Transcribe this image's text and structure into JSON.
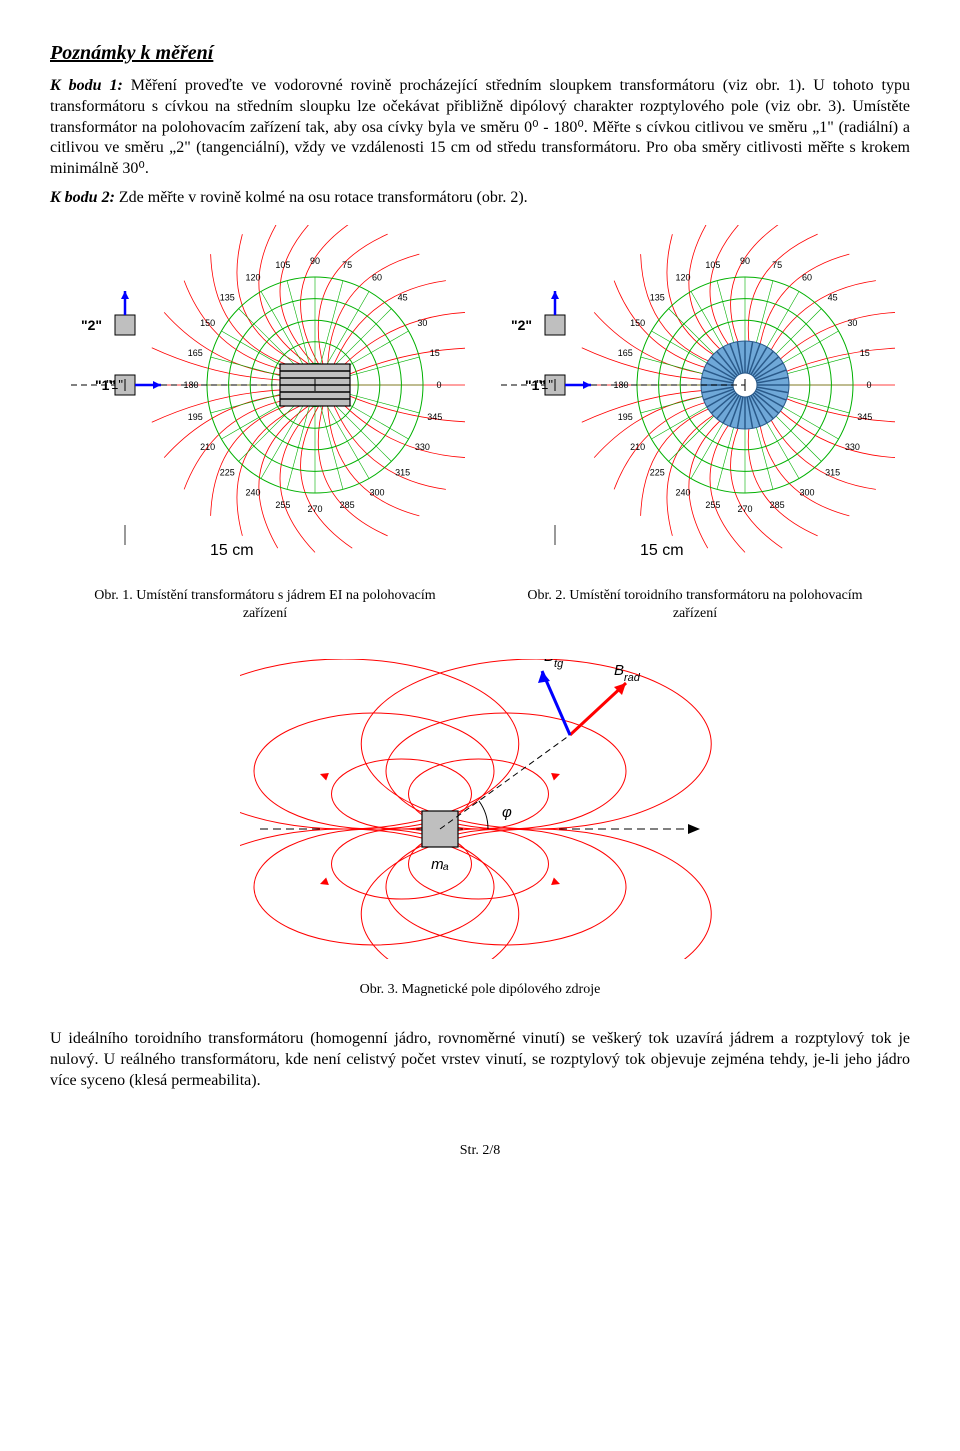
{
  "section_title": "Poznámky k měření",
  "para1_lead": "K bodu 1:",
  "para1_text": " Měření proveďte ve vodorovné rovině procházející středním sloupkem transformátoru (viz obr. 1). U tohoto typu transformátoru s cívkou na středním sloupku lze očekávat přibližně dipólový charakter rozptylového pole (viz obr. 3). Umístěte transformátor na polohovacím zařízení tak, aby osa cívky byla ve směru 0⁰ - 180⁰. Měřte s cívkou citlivou ve směru „1\" (radiální) a citlivou ve směru „2\" (tangenciální), vždy ve vzdálenosti 15 cm od středu transformátoru. Pro oba směry citlivosti měřte s krokem minimálně 30⁰.",
  "para2_lead": "K bodu 2:",
  "para2_text": " Zde měřte v rovině kolmé na osu rotace transformátoru (obr. 2).",
  "polar": {
    "angles": [
      0,
      15,
      30,
      45,
      60,
      75,
      90,
      105,
      120,
      135,
      150,
      165,
      180,
      195,
      210,
      225,
      240,
      255,
      270,
      285,
      300,
      315,
      330,
      345
    ],
    "angle_label_fontsize": 9,
    "angle_label_color": "#000000",
    "rings": 5,
    "ring_color": "#00b000",
    "spoke_color": "#808080",
    "field_line_color": "#ff0000",
    "field_line_count": 28,
    "center_rect_fill": "#bfbfbf",
    "center_rect_stroke": "#000000",
    "toroid_fill": "#6fa8d8",
    "toroid_stroke": "#2a5a8a",
    "spoke_count_toroid": 36,
    "probe_box_fill": "#bfbfbf",
    "probe_box_stroke": "#000000",
    "arrow_color": "#0000ff",
    "label_1": "\"1\"",
    "label_2": "\"2\"",
    "distance_label": "15 cm",
    "distance_label_fontsize": 16,
    "distance_label_color": "#000000"
  },
  "caption1": "Obr. 1.  Umístění transformátoru s jádrem EI na polohovacím zařízení",
  "caption2": "Obr. 2. Umístění toroidního transformátoru na polohovacím zařízení",
  "fig3": {
    "field_line_color": "#ff0000",
    "axis_color": "#000000",
    "box_fill": "#bfbfbf",
    "box_stroke": "#000000",
    "vec_rad_color": "#ff0000",
    "vec_tg_color": "#0000ff",
    "angle_arc_color": "#000000",
    "label_mA": "mₐ",
    "label_Btg": "B_tg",
    "label_Brad": "B_rad",
    "label_phi": "φ",
    "label_fontsize_main": 15,
    "label_fontsize_sub": 11
  },
  "caption3": "Obr. 3.  Magnetické pole dipólového zdroje",
  "para3_text": "U ideálního toroidního transformátoru (homogenní jádro, rovnoměrné vinutí) se veškerý tok uzavírá jádrem a rozptylový tok je nulový. U reálného transformátoru, kde není celistvý počet vrstev vinutí, se rozptylový tok objevuje zejména tehdy, je-li jeho jádro více syceno (klesá permeabilita).",
  "footer": "Str. 2/8"
}
